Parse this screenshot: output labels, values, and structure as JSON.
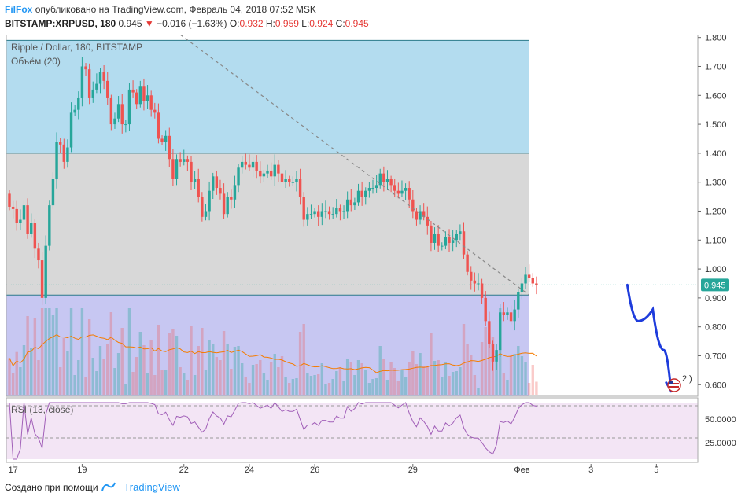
{
  "header": {
    "brand": "FilFox",
    "published_text": "опубликовано на TradingView.com, Февраль 04, 2018 07:52 MSK",
    "symbol": "BITSTAMP:XRPUSD, 180",
    "last": "0.945",
    "change": "−0.016 (−1.63%)",
    "o_label": "O:",
    "o_value": "0.932",
    "h_label": "H:",
    "h_value": "0.959",
    "l_label": "L:",
    "l_value": "0.924",
    "c_label": "C:",
    "c_value": "0.945"
  },
  "chart_labels": {
    "main_title": "Ripple / Dollar, 180, BITSTAMP",
    "volume_label": "Объём (20)",
    "rsi_label": "RSI (13, close)",
    "price_badge": "0.945",
    "marker_text": "2"
  },
  "chart_data": {
    "type": "candlestick",
    "title": "Ripple / Dollar, 180, BITSTAMP",
    "ylim": [
      0.56,
      1.81
    ],
    "y_ticks": [
      "1.800",
      "1.700",
      "1.600",
      "1.500",
      "1.400",
      "1.300",
      "1.200",
      "1.100",
      "1.000",
      "0.900",
      "0.800",
      "0.700",
      "0.600"
    ],
    "x_ticks": [
      "17",
      "19",
      "22",
      "24",
      "26",
      "29",
      "Фев",
      "3",
      "5"
    ],
    "x_tick_index": [
      1,
      20,
      48,
      66,
      84,
      111,
      141,
      160,
      178
    ],
    "last_price": 0.945,
    "zones": [
      {
        "name": "",
        "from_index": 0,
        "to_index": 143,
        "y_low": 1.4,
        "y_high": 1.79,
        "color": "#b3dcef"
      },
      {
        "name": "",
        "from_index": 0,
        "to_index": 143,
        "y_low": 0.91,
        "y_high": 1.4,
        "color": "#d8d8d8"
      },
      {
        "name": "",
        "from_index": 0,
        "to_index": 143,
        "y_low": 0.56,
        "y_high": 0.91,
        "color": "#c7c7f2"
      }
    ],
    "trendline": {
      "from": [
        47,
        1.81
      ],
      "to": [
        143,
        0.91
      ]
    },
    "projection_path": [
      [
        170,
        0.945
      ],
      [
        173,
        0.82
      ],
      [
        177,
        0.86
      ],
      [
        180,
        0.72
      ],
      [
        182,
        0.58
      ]
    ],
    "candles_close": [
      1.215,
      1.207,
      1.16,
      1.17,
      1.22,
      1.12,
      1.16,
      1.07,
      1.03,
      0.9,
      1.08,
      1.22,
      1.31,
      1.44,
      1.43,
      1.37,
      1.42,
      1.54,
      1.55,
      1.59,
      1.7,
      1.69,
      1.59,
      1.62,
      1.64,
      1.68,
      1.65,
      1.59,
      1.5,
      1.52,
      1.57,
      1.5,
      1.5,
      1.62,
      1.61,
      1.57,
      1.63,
      1.58,
      1.6,
      1.55,
      1.54,
      1.45,
      1.44,
      1.46,
      1.38,
      1.31,
      1.38,
      1.37,
      1.38,
      1.37,
      1.3,
      1.31,
      1.25,
      1.18,
      1.2,
      1.27,
      1.32,
      1.28,
      1.26,
      1.19,
      1.25,
      1.24,
      1.29,
      1.35,
      1.37,
      1.36,
      1.35,
      1.37,
      1.34,
      1.32,
      1.33,
      1.34,
      1.32,
      1.36,
      1.33,
      1.3,
      1.31,
      1.3,
      1.3,
      1.31,
      1.25,
      1.17,
      1.19,
      1.19,
      1.2,
      1.18,
      1.2,
      1.2,
      1.19,
      1.19,
      1.21,
      1.2,
      1.2,
      1.24,
      1.22,
      1.23,
      1.27,
      1.25,
      1.27,
      1.28,
      1.28,
      1.29,
      1.33,
      1.3,
      1.31,
      1.29,
      1.27,
      1.26,
      1.27,
      1.28,
      1.24,
      1.2,
      1.17,
      1.2,
      1.18,
      1.15,
      1.09,
      1.12,
      1.08,
      1.08,
      1.11,
      1.09,
      1.1,
      1.12,
      1.13,
      1.05,
      0.99,
      0.96,
      0.95,
      0.95,
      0.9,
      0.82,
      0.74,
      0.68,
      0.72,
      0.85,
      0.84,
      0.85,
      0.82,
      0.86,
      0.92,
      0.95,
      0.98,
      0.97,
      0.95,
      0.945
    ]
  }
}
